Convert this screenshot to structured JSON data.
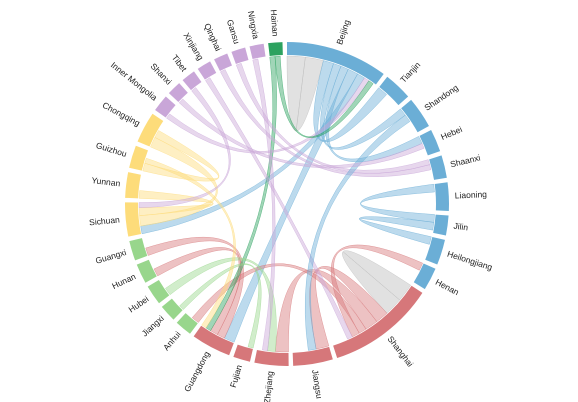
{
  "chart_data": {
    "type": "chord",
    "categories": [
      "Beijing",
      "Tianjin",
      "Shandong",
      "Hebei",
      "Shaanxi",
      "Liaoning",
      "Jilin",
      "Heilongjiang",
      "Henan",
      "Shanghai",
      "Jiangsu",
      "Zhejiang",
      "Fujian",
      "Guangdong",
      "Anhui",
      "Jiangxi",
      "Hubei",
      "Hunan",
      "Guangxi",
      "Sichuan",
      "Yunnan",
      "Guizhou",
      "Chongqing",
      "Inner Mongolia",
      "Shanxi",
      "Tibet",
      "Xinjiang",
      "Qinghai",
      "Gansu",
      "Ningxia",
      "Hainan"
    ],
    "values": [
      36,
      10,
      11,
      8,
      8,
      10,
      7,
      9,
      8,
      38,
      14,
      12,
      6,
      14,
      6,
      6,
      7,
      7,
      7,
      12,
      9,
      8,
      11,
      6,
      5,
      5,
      5,
      5,
      5,
      5,
      5
    ],
    "colors": [
      "#6baed6",
      "#6baed6",
      "#6baed6",
      "#6baed6",
      "#6baed6",
      "#6baed6",
      "#6baed6",
      "#6baed6",
      "#6baed6",
      "#d6777a",
      "#d6777a",
      "#d6777a",
      "#d6777a",
      "#d6777a",
      "#98d68c",
      "#98d68c",
      "#98d68c",
      "#98d68c",
      "#98d68c",
      "#fddc7a",
      "#fddc7a",
      "#fddc7a",
      "#fddc7a",
      "#c9a6d8",
      "#c9a6d8",
      "#c9a6d8",
      "#c9a6d8",
      "#c9a6d8",
      "#c9a6d8",
      "#c9a6d8",
      "#2ca25f"
    ],
    "self_link_color": "#d9d9d9",
    "links": [
      {
        "source": "Beijing",
        "target": "Beijing",
        "value": 14
      },
      {
        "source": "Shanghai",
        "target": "Shanghai",
        "value": 14
      },
      {
        "source": "Beijing",
        "target": "Tianjin",
        "value": 4
      },
      {
        "source": "Beijing",
        "target": "Shandong",
        "value": 3
      },
      {
        "source": "Beijing",
        "target": "Hebei",
        "value": 3
      },
      {
        "source": "Beijing",
        "target": "Guangdong",
        "value": 4
      },
      {
        "source": "Beijing",
        "target": "Sichuan",
        "value": 3
      },
      {
        "source": "Shanghai",
        "target": "Jiangsu",
        "value": 5
      },
      {
        "source": "Shanghai",
        "target": "Zhejiang",
        "value": 5
      },
      {
        "source": "Shanghai",
        "target": "Anhui",
        "value": 3
      },
      {
        "source": "Shanghai",
        "target": "Henan",
        "value": 3
      },
      {
        "source": "Guangdong",
        "target": "Guangxi",
        "value": 3
      },
      {
        "source": "Guangdong",
        "target": "Hunan",
        "value": 3
      },
      {
        "source": "Hainan",
        "target": "Guangdong",
        "value": 2
      },
      {
        "source": "Sichuan",
        "target": "Chongqing",
        "value": 4
      },
      {
        "source": "Yunnan",
        "target": "Sichuan",
        "value": 3
      },
      {
        "source": "Chongqing",
        "target": "Guizhou",
        "value": 3
      },
      {
        "source": "Liaoning",
        "target": "Jilin",
        "value": 3
      },
      {
        "source": "Heilongjiang",
        "target": "Jilin",
        "value": 3
      },
      {
        "source": "Gansu",
        "target": "Shaanxi",
        "value": 2
      },
      {
        "source": "Inner Mongolia",
        "target": "Beijing",
        "value": 2
      },
      {
        "source": "Xinjiang",
        "target": "Shanghai",
        "value": 2
      },
      {
        "source": "Hubei",
        "target": "Zhejiang",
        "value": 3
      },
      {
        "source": "Jiangxi",
        "target": "Fujian",
        "value": 2
      },
      {
        "source": "Tibet",
        "target": "Sichuan",
        "value": 2
      },
      {
        "source": "Qinghai",
        "target": "Shaanxi",
        "value": 2
      },
      {
        "source": "Shandong",
        "target": "Jiangsu",
        "value": 3
      },
      {
        "source": "Hainan",
        "target": "Beijing",
        "value": 2
      },
      {
        "source": "Ningxia",
        "target": "Zhejiang",
        "value": 2
      },
      {
        "source": "Shanxi",
        "target": "Hebei",
        "value": 2
      },
      {
        "source": "Guizhou",
        "target": "Guangdong",
        "value": 2
      }
    ]
  }
}
